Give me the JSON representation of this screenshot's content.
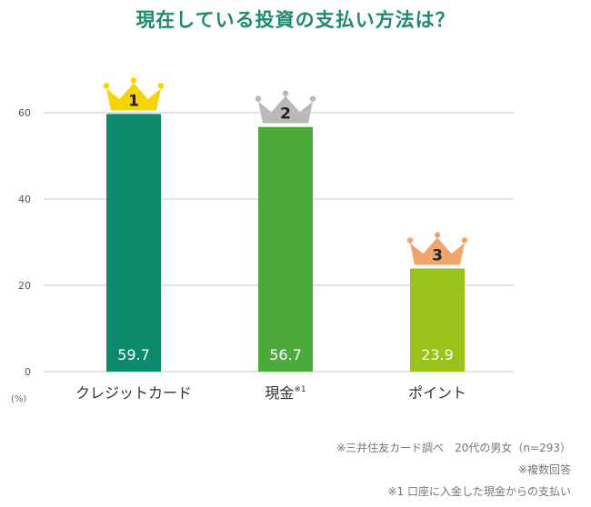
{
  "title": "現在している投資の支払い方法は？",
  "colors": {
    "title": "#1e8a6e",
    "bars": [
      "#0b8a6c",
      "#4caa3c",
      "#97c31a"
    ],
    "crowns": [
      "#f5d400",
      "#b9b9b9",
      "#f0a56a"
    ],
    "grid": "#c8c8c8",
    "label": "#ffffff"
  },
  "chart_data": {
    "type": "bar",
    "title": "現在している投資の支払い方法は？",
    "categories": [
      "クレジットカード",
      "現金",
      "ポイント"
    ],
    "category_superscripts": [
      "",
      "※1",
      ""
    ],
    "values": [
      59.7,
      56.7,
      23.9
    ],
    "data_labels": [
      "59.7",
      "56.7",
      "23.9"
    ],
    "ranks": [
      "1",
      "2",
      "3"
    ],
    "ylim": [
      0,
      70
    ],
    "yticks": [
      0,
      20,
      40,
      60
    ],
    "yunit": "(%)",
    "grid": true
  },
  "notes": [
    "※三井住友カード調べ　20代の男女（n=293）",
    "※複数回答",
    "※1 口座に入金した現金からの支払い"
  ]
}
